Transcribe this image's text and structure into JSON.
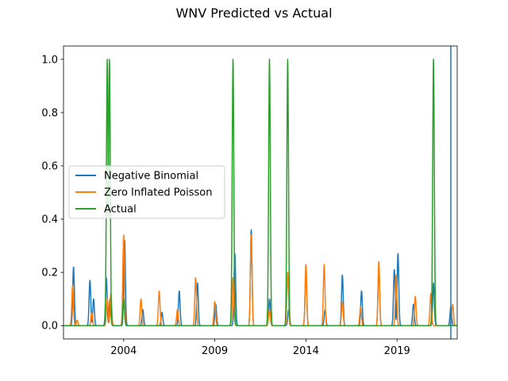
{
  "chart_data": {
    "type": "line",
    "title": "WNV Predicted vs Actual",
    "xlabel": "",
    "ylabel": "",
    "xlim": [
      2000.7,
      2022.3
    ],
    "ylim": [
      -0.05,
      1.05
    ],
    "x_ticks": [
      2004,
      2009,
      2014,
      2019
    ],
    "x_tick_labels": [
      "2004",
      "2009",
      "2014",
      "2019"
    ],
    "y_ticks": [
      0.0,
      0.2,
      0.4,
      0.6,
      0.8,
      1.0
    ],
    "y_tick_labels": [
      "0.0",
      "0.2",
      "0.4",
      "0.6",
      "0.8",
      "1.0"
    ],
    "grid": false,
    "legend_position": "center-left",
    "vline": {
      "x": 2021.95,
      "color": "#1f77b4"
    },
    "series": [
      {
        "name": "Negative Binomial",
        "color": "#1f77b4",
        "peaks": [
          [
            2001.25,
            0.22
          ],
          [
            2002.15,
            0.17
          ],
          [
            2002.35,
            0.1
          ],
          [
            2003.05,
            0.18
          ],
          [
            2003.25,
            0.1
          ],
          [
            2004.05,
            0.32
          ],
          [
            2005.05,
            0.06
          ],
          [
            2006.1,
            0.05
          ],
          [
            2007.05,
            0.13
          ],
          [
            2008.05,
            0.16
          ],
          [
            2009.05,
            0.08
          ],
          [
            2010.1,
            0.27
          ],
          [
            2011.0,
            0.36
          ],
          [
            2012.0,
            0.1
          ],
          [
            2013.05,
            0.06
          ],
          [
            2014.0,
            0.21
          ],
          [
            2015.05,
            0.06
          ],
          [
            2016.0,
            0.19
          ],
          [
            2017.05,
            0.13
          ],
          [
            2018.0,
            0.22
          ],
          [
            2018.85,
            0.21
          ],
          [
            2019.05,
            0.27
          ],
          [
            2019.9,
            0.08
          ],
          [
            2021.0,
            0.16
          ],
          [
            2021.95,
            0.07
          ]
        ]
      },
      {
        "name": "Zero Inflated Poisson",
        "color": "#ff7f0e",
        "peaks": [
          [
            2001.2,
            0.15
          ],
          [
            2001.45,
            0.02
          ],
          [
            2002.25,
            0.05
          ],
          [
            2003.1,
            0.1
          ],
          [
            2003.3,
            0.12
          ],
          [
            2004.0,
            0.34
          ],
          [
            2004.95,
            0.1
          ],
          [
            2005.95,
            0.13
          ],
          [
            2006.95,
            0.06
          ],
          [
            2007.95,
            0.18
          ],
          [
            2009.0,
            0.09
          ],
          [
            2010.0,
            0.18
          ],
          [
            2011.0,
            0.34
          ],
          [
            2012.0,
            0.06
          ],
          [
            2013.0,
            0.2
          ],
          [
            2014.0,
            0.23
          ],
          [
            2015.0,
            0.23
          ],
          [
            2016.0,
            0.09
          ],
          [
            2017.0,
            0.07
          ],
          [
            2018.0,
            0.24
          ],
          [
            2018.95,
            0.19
          ],
          [
            2020.0,
            0.11
          ],
          [
            2020.85,
            0.12
          ],
          [
            2022.05,
            0.08
          ]
        ]
      },
      {
        "name": "Actual",
        "color": "#2ca02c",
        "peaks": [
          [
            2003.1,
            1.0
          ],
          [
            2003.22,
            1.0
          ],
          [
            2004.0,
            0.1
          ],
          [
            2010.0,
            1.0
          ],
          [
            2012.0,
            1.0
          ],
          [
            2013.0,
            1.0
          ],
          [
            2021.0,
            1.0
          ]
        ]
      }
    ]
  }
}
